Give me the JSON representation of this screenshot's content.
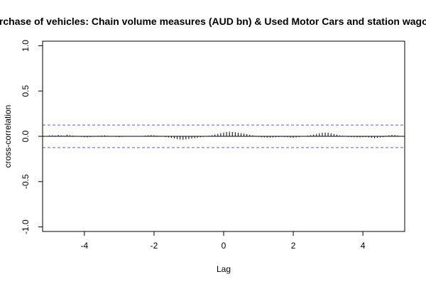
{
  "chart_data": {
    "type": "bar",
    "title": "Purchase of vehicles: Chain volume measures (AUD bn) & Used Motor Cars and station wagons",
    "xlabel": "Lag",
    "ylabel": "cross-correlation",
    "xlim": [
      -5.2,
      5.2
    ],
    "ylim": [
      -1.05,
      1.05
    ],
    "x_ticks": [
      -4,
      -2,
      0,
      2,
      4
    ],
    "y_ticks": [
      -1.0,
      -0.5,
      0.0,
      0.5,
      1.0
    ],
    "x_tick_labels": [
      "-4",
      "-2",
      "0",
      "2",
      "4"
    ],
    "y_tick_labels": [
      "-1.0",
      "-0.5",
      "0.0",
      "0.5",
      "1.0"
    ],
    "confidence_band": 0.124,
    "confidence_color": "#5b5bd6",
    "lag_step": 0.0833333,
    "lag_start": -5.0,
    "values": [
      0.01,
      0.012,
      0.008,
      0.015,
      0.01,
      0.006,
      0.018,
      0.012,
      0.008,
      0.005,
      0.004,
      -0.006,
      -0.01,
      -0.012,
      -0.008,
      -0.005,
      0.004,
      0.006,
      0.008,
      0.01,
      0.006,
      0.004,
      -0.004,
      -0.006,
      -0.008,
      -0.006,
      -0.004,
      0.003,
      0.004,
      -0.003,
      -0.004,
      -0.002,
      0.004,
      0.008,
      0.012,
      0.014,
      0.012,
      0.008,
      0.005,
      -0.004,
      -0.008,
      -0.012,
      -0.018,
      -0.024,
      -0.03,
      -0.035,
      -0.038,
      -0.034,
      -0.03,
      -0.025,
      -0.02,
      -0.015,
      -0.01,
      -0.006,
      -0.004,
      0.006,
      0.012,
      0.02,
      0.028,
      0.035,
      0.042,
      0.048,
      0.05,
      0.048,
      0.045,
      0.04,
      0.035,
      0.03,
      0.025,
      0.018,
      0.012,
      0.006,
      -0.006,
      -0.01,
      -0.012,
      -0.014,
      -0.014,
      -0.012,
      -0.01,
      -0.008,
      -0.006,
      -0.008,
      -0.01,
      -0.014,
      -0.016,
      -0.012,
      -0.008,
      -0.004,
      0.004,
      0.008,
      0.012,
      0.018,
      0.026,
      0.034,
      0.04,
      0.042,
      0.04,
      0.034,
      0.026,
      0.018,
      0.01,
      0.006,
      -0.004,
      -0.006,
      -0.008,
      -0.01,
      -0.012,
      -0.012,
      -0.01,
      -0.008,
      -0.012,
      -0.016,
      -0.02,
      -0.016,
      -0.012,
      -0.008,
      0.006,
      0.012,
      0.016,
      0.014,
      0.01
    ]
  }
}
